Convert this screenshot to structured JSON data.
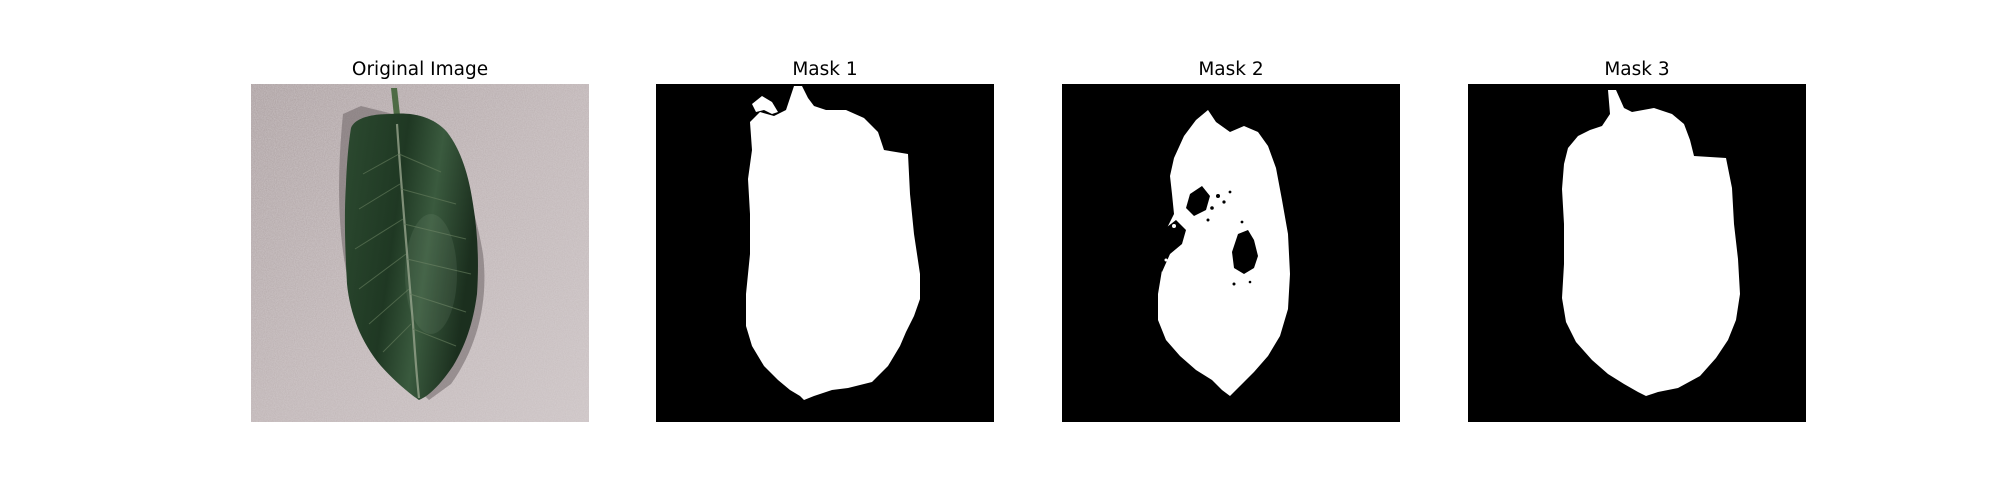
{
  "figure": {
    "panels": [
      {
        "title": "Original Image",
        "kind": "photo",
        "subject": "green leaf on textured gray surface"
      },
      {
        "title": "Mask 1",
        "kind": "binary-mask"
      },
      {
        "title": "Mask 2",
        "kind": "binary-mask"
      },
      {
        "title": "Mask 3",
        "kind": "binary-mask"
      }
    ]
  },
  "colors": {
    "figure_background": "#ffffff",
    "mask_background": "#000000",
    "mask_foreground": "#ffffff",
    "photo_background": "#b8adae",
    "leaf_dark": "#1e3322",
    "leaf_mid": "#2f4f35",
    "leaf_vein": "#8f9e86"
  }
}
